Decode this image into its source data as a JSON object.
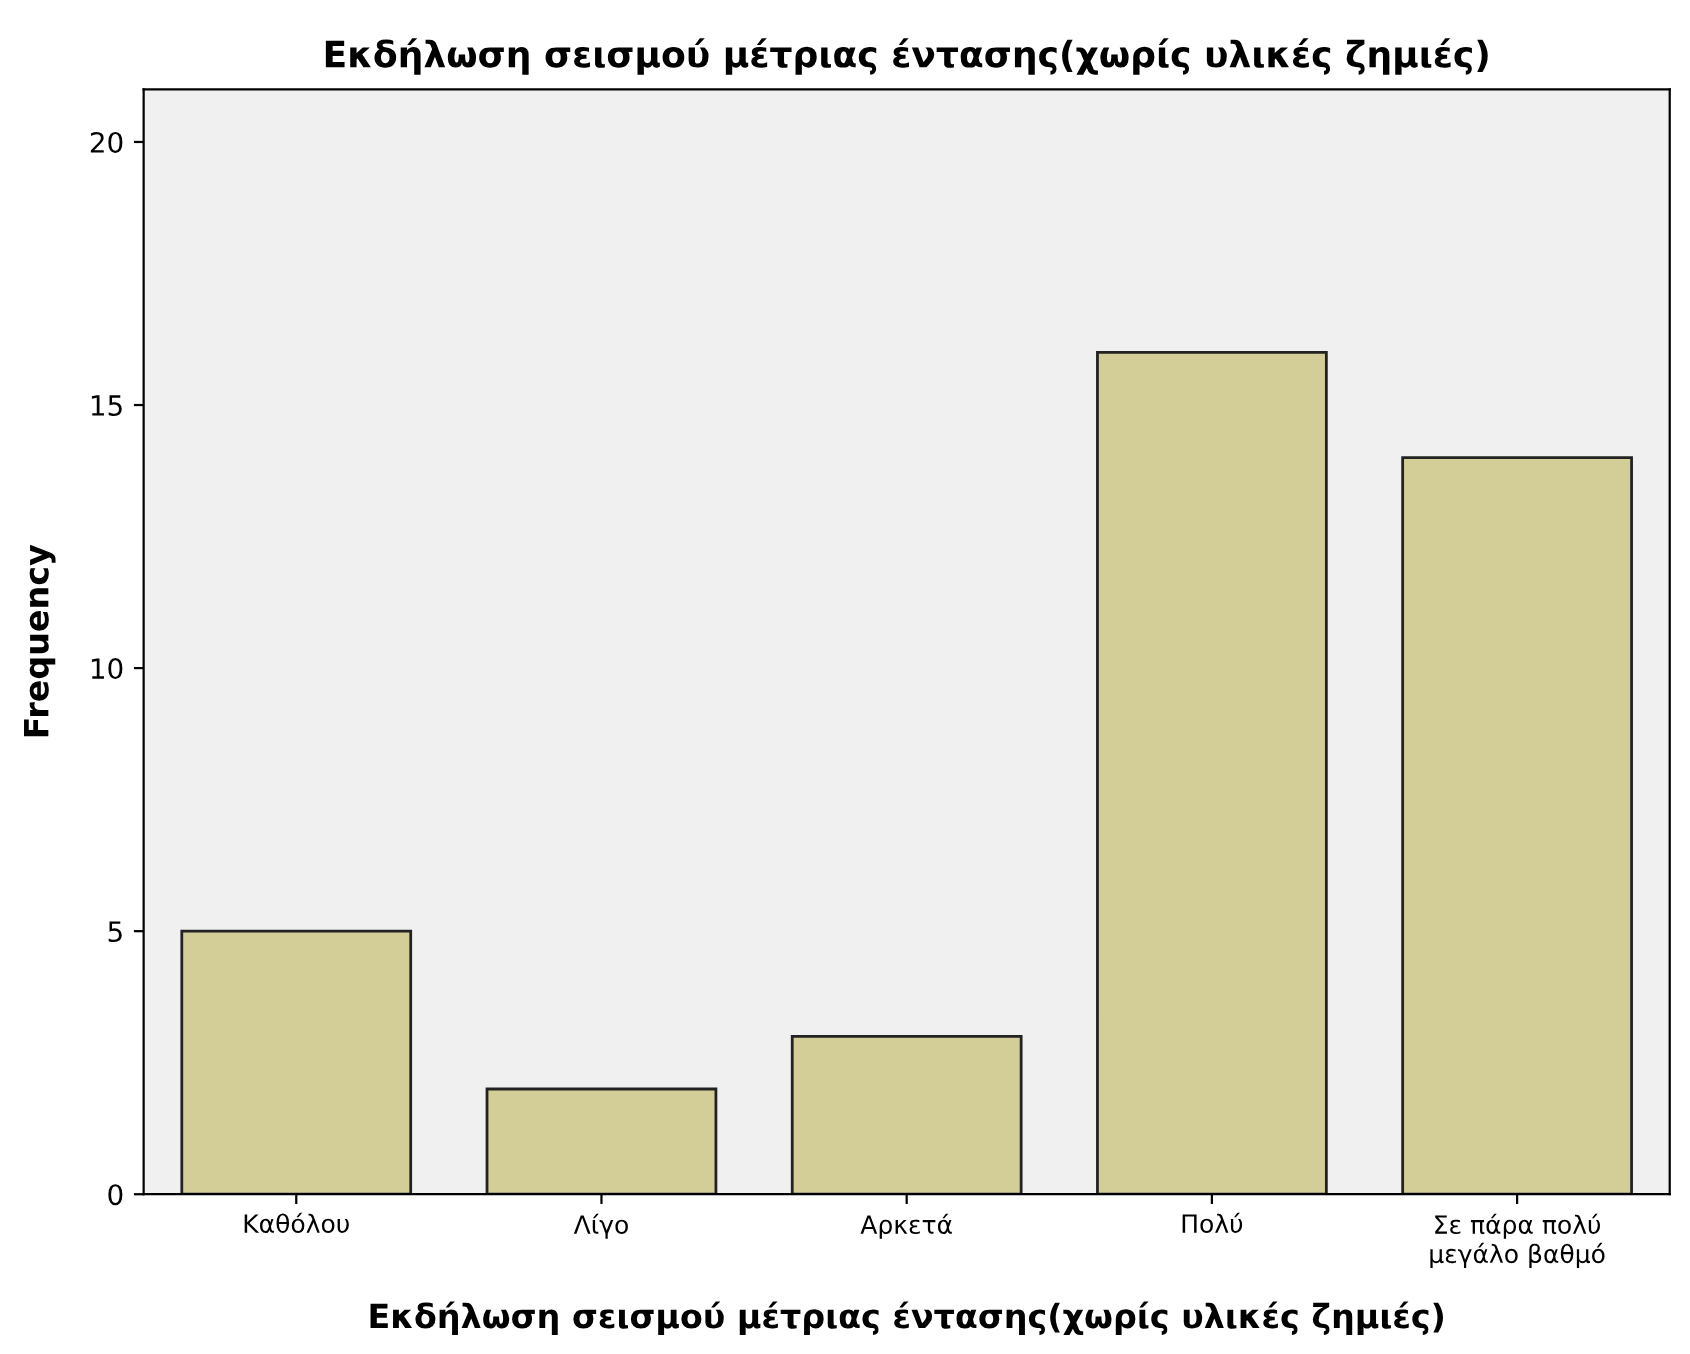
{
  "chart_data": {
    "type": "bar",
    "title": "Εκδήλωση σεισμού μέτριας έντασης(χωρίς υλικές ζημιές)",
    "xlabel": "Εκδήλωση σεισμού μέτριας έντασης(χωρίς υλικές ζημιές)",
    "ylabel": "Frequency",
    "categories": [
      "Καθόλου",
      "Λίγο",
      "Αρκετά",
      "Πολύ",
      "Σε πάρα πολύ\nμεγάλο βαθμό"
    ],
    "values": [
      5,
      2,
      3,
      16,
      14
    ],
    "color": "#d3ce97",
    "ylim": [
      0,
      21
    ],
    "yticks": [
      0,
      5,
      10,
      15,
      20
    ],
    "grid": false,
    "legend": false
  }
}
